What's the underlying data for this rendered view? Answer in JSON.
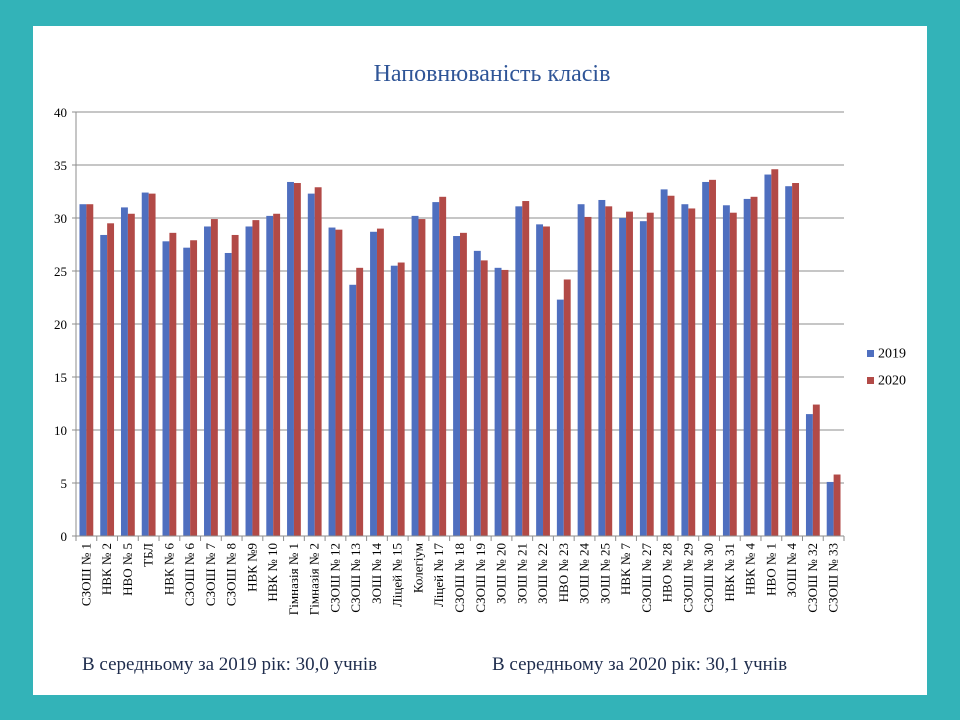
{
  "chart_data": {
    "type": "bar",
    "title": "Наповнюваність класів",
    "xlabel": "",
    "ylabel": "",
    "ylim": [
      0,
      40
    ],
    "yticks": [
      0,
      5,
      10,
      15,
      20,
      25,
      30,
      35,
      40
    ],
    "grid": true,
    "legend_position": "right",
    "categories": [
      "СЗОШ № 1",
      "НВК № 2",
      "НВО № 5",
      "ТБЛ",
      "НВК № 6",
      "СЗОШ № 6",
      "СЗОШ № 7",
      "СЗОШ № 8",
      "НВК №9",
      "НВК № 10",
      "Гімназія № 1",
      "Гімназія № 2",
      "СЗОШ № 12",
      "СЗОШ № 13",
      "ЗОШ № 14",
      "Ліцей № 15",
      "Колегіум",
      "Ліцей № 17",
      "СЗОШ № 18",
      "СЗОШ № 19",
      "ЗОШ № 20",
      "ЗОШ № 21",
      "ЗОШ № 22",
      "НВО № 23",
      "ЗОШ № 24",
      "ЗОШ № 25",
      "НВК № 7",
      "СЗОШ № 27",
      "НВО № 28",
      "СЗОШ № 29",
      "СЗОШ № 30",
      "НВК № 31",
      "НВК № 4",
      "НВО № 1",
      "ЗОШ № 4",
      "СЗОШ № 32",
      "СЗОШ № 33"
    ],
    "series": [
      {
        "name": "2019",
        "color": "#4f6fbf",
        "values": [
          31.3,
          28.4,
          31.0,
          32.4,
          27.8,
          27.2,
          29.2,
          26.7,
          29.2,
          30.2,
          33.4,
          32.3,
          29.1,
          23.7,
          28.7,
          25.5,
          30.2,
          31.5,
          28.3,
          26.9,
          25.3,
          31.1,
          29.4,
          22.3,
          31.3,
          31.7,
          30.0,
          29.7,
          32.7,
          31.3,
          33.4,
          31.2,
          31.8,
          34.1,
          33.0,
          11.5,
          5.1
        ]
      },
      {
        "name": "2020",
        "color": "#b24a47",
        "values": [
          31.3,
          29.5,
          30.4,
          32.3,
          28.6,
          27.9,
          29.9,
          28.4,
          29.8,
          30.4,
          33.3,
          32.9,
          28.9,
          25.3,
          29.0,
          25.8,
          29.9,
          32.0,
          28.6,
          26.0,
          25.1,
          31.6,
          29.2,
          24.2,
          30.1,
          31.1,
          30.6,
          30.5,
          32.1,
          30.9,
          33.6,
          30.5,
          32.0,
          34.6,
          33.3,
          12.4,
          5.8
        ]
      }
    ]
  },
  "footer": {
    "avg_2019": "В середньому за 2019 рік: 30,0 учнів",
    "avg_2020": "В середньому за 2020 рік: 30,1 учнів"
  }
}
